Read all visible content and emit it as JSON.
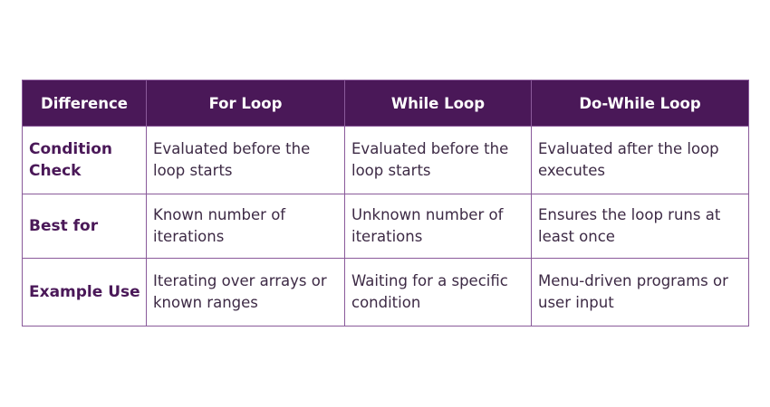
{
  "table": {
    "header": [
      "Difference",
      "For Loop",
      "While Loop",
      "Do-While Loop"
    ],
    "rows": [
      [
        "Condition Check",
        "Evaluated before the loop starts",
        "Evaluated before the loop starts",
        "Evaluated after the loop executes"
      ],
      [
        "Best for",
        "Known number of iterations",
        "Unknown number of iterations",
        "Ensures the loop runs at least once"
      ],
      [
        "Example Use",
        "Iterating over arrays or known ranges",
        "Waiting for a specific condition",
        "Menu-driven programs or user input"
      ]
    ]
  }
}
